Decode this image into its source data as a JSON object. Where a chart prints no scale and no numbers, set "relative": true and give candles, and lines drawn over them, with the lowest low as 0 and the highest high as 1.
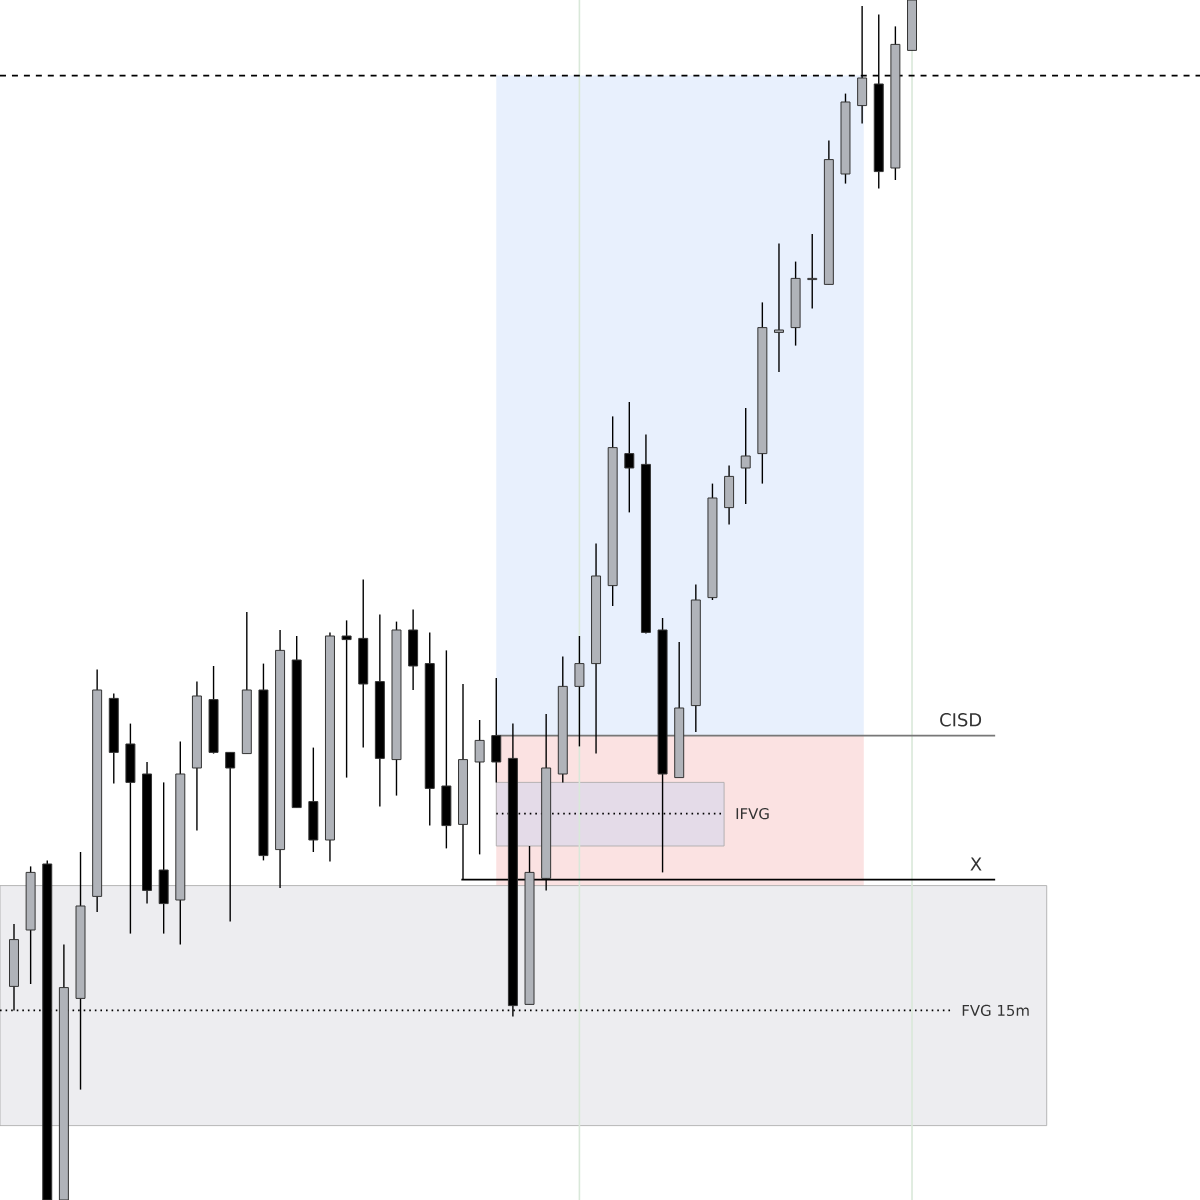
{
  "chart_data": {
    "type": "candlestick",
    "relative": true,
    "categories": [
      null,
      null,
      null,
      null,
      null,
      null,
      null,
      null,
      null,
      null,
      null,
      null,
      null,
      null,
      null,
      null,
      null,
      null,
      null,
      null,
      null,
      null,
      null,
      null,
      null,
      null,
      null,
      null,
      null,
      null,
      null,
      null,
      null,
      null,
      null,
      null,
      null,
      null,
      null,
      null,
      null,
      null,
      null,
      null,
      null,
      null,
      null,
      null,
      null,
      null,
      null,
      null,
      null,
      null,
      null
    ],
    "ohlc": [
      [
        0.178,
        0.23,
        0.158,
        0.217
      ],
      [
        0.225,
        0.278,
        0.18,
        0.273
      ],
      [
        0.28,
        0.283,
        0,
        0
      ],
      [
        0,
        0.213,
        0,
        0.177
      ],
      [
        0.168,
        0.29,
        0.092,
        0.245
      ],
      [
        0.253,
        0.442,
        0.24,
        0.425
      ],
      [
        0.418,
        0.422,
        0.347,
        0.373
      ],
      [
        0.38,
        0.397,
        0.222,
        0.348
      ],
      [
        0.355,
        0.365,
        0.247,
        0.258
      ],
      [
        0.275,
        0.348,
        0.222,
        0.247
      ],
      [
        0.25,
        0.382,
        0.213,
        0.355
      ],
      [
        0.36,
        0.432,
        0.308,
        0.42
      ],
      [
        0.417,
        0.445,
        0.372,
        0.373
      ],
      [
        0.373,
        0.373,
        0.232,
        0.36
      ],
      [
        0.372,
        0.49,
        0.372,
        0.425
      ],
      [
        0.425,
        0.447,
        0.283,
        0.287
      ],
      [
        0.292,
        0.475,
        0.26,
        0.458
      ],
      [
        0.45,
        0.47,
        0.327,
        0.327
      ],
      [
        0.332,
        0.377,
        0.29,
        0.3
      ],
      [
        0.3,
        0.473,
        0.282,
        0.47
      ],
      [
        0.47,
        0.483,
        0.352,
        0.467
      ],
      [
        0.468,
        0.517,
        0.377,
        0.43
      ],
      [
        0.432,
        0.488,
        0.328,
        0.368
      ],
      [
        0.367,
        0.482,
        0.337,
        0.475
      ],
      [
        0.475,
        0.492,
        0.425,
        0.445
      ],
      [
        0.447,
        0.473,
        0.312,
        0.343
      ],
      [
        0.345,
        0.458,
        0.293,
        0.312
      ],
      [
        0.313,
        0.43,
        0.267,
        0.367
      ],
      [
        0.365,
        0.4,
        0.288,
        0.383
      ],
      [
        0.387,
        0.435,
        0.348,
        0.365
      ],
      [
        0.368,
        0.397,
        0.153,
        0.162
      ],
      [
        0.163,
        0.295,
        0.163,
        0.273
      ],
      [
        0.268,
        0.405,
        0.258,
        0.36
      ],
      [
        0.355,
        0.453,
        0.348,
        0.428
      ],
      [
        0.428,
        0.47,
        0.378,
        0.447
      ],
      [
        0.447,
        0.547,
        0.372,
        0.52
      ],
      [
        0.512,
        0.653,
        0.495,
        0.627
      ],
      [
        0.622,
        0.665,
        0.573,
        0.61
      ],
      [
        0.613,
        0.638,
        0.472,
        0.473
      ],
      [
        0.475,
        0.485,
        0.273,
        0.355
      ],
      [
        0.352,
        0.465,
        0.352,
        0.41
      ],
      [
        0.412,
        0.513,
        0.39,
        0.5
      ],
      [
        0.502,
        0.597,
        0.5,
        0.585
      ],
      [
        0.577,
        0.612,
        0.563,
        0.603
      ],
      [
        0.61,
        0.66,
        0.58,
        0.62
      ],
      [
        0.622,
        0.748,
        0.597,
        0.727
      ],
      [
        0.723,
        0.797,
        0.69,
        0.725
      ],
      [
        0.727,
        0.782,
        0.712,
        0.768
      ],
      [
        0.767,
        0.805,
        0.743,
        0.768
      ],
      [
        0.763,
        0.883,
        0.763,
        0.867
      ],
      [
        0.855,
        0.922,
        0.847,
        0.915
      ],
      [
        0.912,
        0.995,
        0.897,
        0.935
      ],
      [
        0.93,
        0.988,
        0.843,
        0.857
      ],
      [
        0.86,
        0.978,
        0.85,
        0.963
      ],
      [
        0.958,
        1,
        0.958,
        1
      ]
    ],
    "colors": [
      "#b0b3b9",
      "#b0b3b9",
      "#000000",
      "#b0b3b9",
      "#b0b3b9",
      "#b0b3b9",
      "#000000",
      "#000000",
      "#000000",
      "#000000",
      "#b0b3b9",
      "#b0b3b9",
      "#000000",
      "#000000",
      "#b0b3b9",
      "#000000",
      "#b0b3b9",
      "#000000",
      "#000000",
      "#b0b3b9",
      "#000000",
      "#000000",
      "#000000",
      "#b0b3b9",
      "#000000",
      "#000000",
      "#000000",
      "#b0b3b9",
      "#b0b3b9",
      "#000000",
      "#000000",
      "#b0b3b9",
      "#b0b3b9",
      "#b0b3b9",
      "#b0b3b9",
      "#b0b3b9",
      "#b0b3b9",
      "#000000",
      "#000000",
      "#000000",
      "#b0b3b9",
      "#b0b3b9",
      "#b0b3b9",
      "#b0b3b9",
      "#b0b3b9",
      "#b0b3b9",
      "#b0b3b9",
      "#b0b3b9",
      "#b0b3b9",
      "#b0b3b9",
      "#b0b3b9",
      "#b0b3b9",
      "#000000",
      "#b0b3b9",
      "#b0b3b9"
    ],
    "bands": [
      {
        "axis": "y",
        "from": 0.387,
        "to": 0.937,
        "color": "#e8f0fd"
      },
      {
        "axis": "y",
        "from": 0.212,
        "to": 0.387,
        "color": "#fbe2e2"
      },
      {
        "axis": "y",
        "from": 0.062,
        "to": 0.262,
        "color": "#ededf0"
      },
      {
        "axis": "y",
        "from": 0.295,
        "to": 0.348,
        "color": "#e4dbe8"
      }
    ],
    "ref_lines": [
      {
        "axis": "y",
        "value": 0.937,
        "color": "#000000",
        "line_style": "dashed"
      },
      {
        "axis": "y",
        "value": 0.387,
        "color": "#777777",
        "label": "CISD"
      },
      {
        "axis": "y",
        "value": 0.267,
        "color": "#000000",
        "label": "X"
      },
      {
        "axis": "y",
        "value": 0.322,
        "color": "#000000",
        "line_style": "dotted",
        "label": "IFVG"
      },
      {
        "axis": "y",
        "value": 0.158,
        "color": "#000000",
        "line_style": "dotted",
        "label": "FVG 15m"
      }
    ]
  }
}
